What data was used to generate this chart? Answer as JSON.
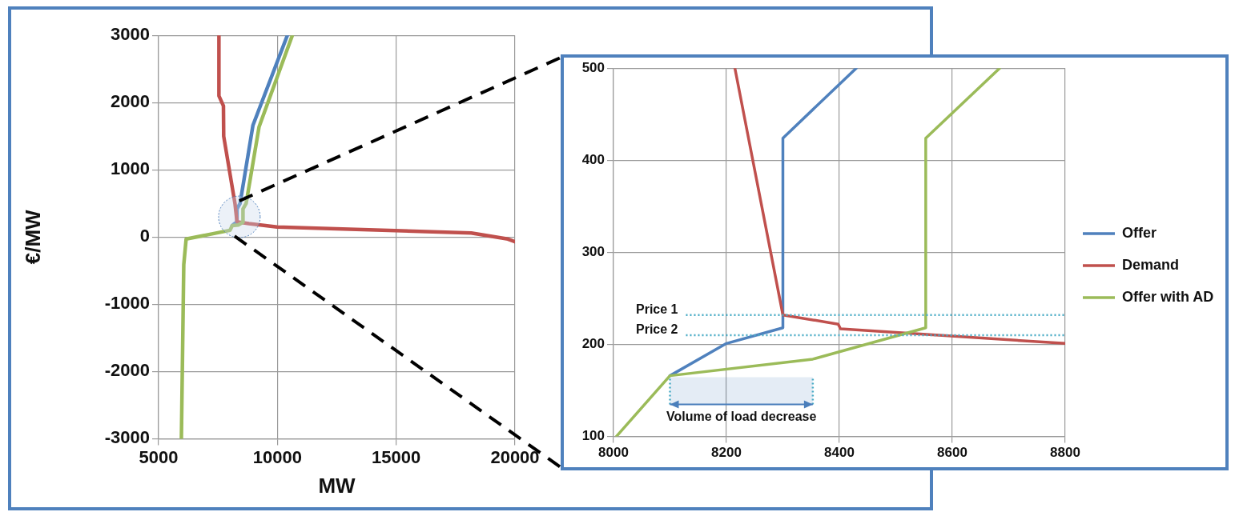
{
  "chart_data": [
    {
      "type": "line",
      "xlabel": "MW",
      "ylabel": "€/MW",
      "xlim": [
        5000,
        20000
      ],
      "xticks": [
        5000,
        10000,
        15000,
        20000
      ],
      "ylim": [
        -3000,
        3000
      ],
      "yticks": [
        -3000,
        -2000,
        -1000,
        0,
        1000,
        2000,
        3000
      ],
      "grid": true,
      "legend": false,
      "marker": "none",
      "series": [
        {
          "color": "#4f81bd",
          "x": [
            8100,
            8200,
            8300,
            8300,
            8430,
            8970,
            10420
          ],
          "values": [
            170,
            200,
            220,
            420,
            500,
            1660,
            3000
          ]
        },
        {
          "color": "#c0504d",
          "x": [
            7540,
            7540,
            7730,
            7740,
            8215,
            8300,
            8400,
            8800,
            9990,
            18160,
            19700,
            20000
          ],
          "values": [
            3000,
            2100,
            1950,
            1500,
            500,
            230,
            220,
            200,
            150,
            60,
            -30,
            -70
          ]
        },
        {
          "color": "#9bbb59",
          "x": [
            5960,
            6060,
            6160,
            8005,
            8100,
            8353,
            8553,
            8553,
            8684,
            9230,
            10630
          ],
          "values": [
            -3000,
            -410,
            -30,
            100,
            170,
            180,
            220,
            420,
            500,
            1640,
            3000
          ]
        }
      ]
    },
    {
      "type": "line",
      "xlim": [
        8000,
        8800
      ],
      "xticks": [
        8000,
        8200,
        8400,
        8600,
        8800
      ],
      "ylim": [
        100,
        500
      ],
      "yticks": [
        100,
        200,
        300,
        400,
        500
      ],
      "grid": true,
      "legend": "right",
      "marker": "none",
      "series": [
        {
          "name": "Offer",
          "color": "#4f81bd",
          "x": [
            8100,
            8200,
            8300,
            8300,
            8430
          ],
          "values": [
            166,
            201,
            218,
            424,
            500
          ]
        },
        {
          "name": "Demand",
          "color": "#c0504d",
          "x": [
            8215,
            8300,
            8398,
            8402,
            8800
          ],
          "values": [
            500,
            232,
            222,
            217,
            201
          ]
        },
        {
          "name": "Offer with AD",
          "color": "#9bbb59",
          "x": [
            8005,
            8100,
            8353,
            8553,
            8553,
            8684
          ],
          "values": [
            100,
            166,
            184,
            218,
            424,
            500
          ]
        }
      ],
      "ref_lines": [
        {
          "axis": "y",
          "value": 232,
          "label": "Price 1",
          "color": "#4bacc6",
          "line_style": "dotted"
        },
        {
          "axis": "y",
          "value": 210,
          "label": "Price 2",
          "color": "#4bacc6",
          "line_style": "dotted"
        }
      ],
      "bands": [
        {
          "axis": "x",
          "from": 8100,
          "to": 8353,
          "label": "Volume of load decrease",
          "color": "#4a7ebb"
        }
      ]
    }
  ]
}
